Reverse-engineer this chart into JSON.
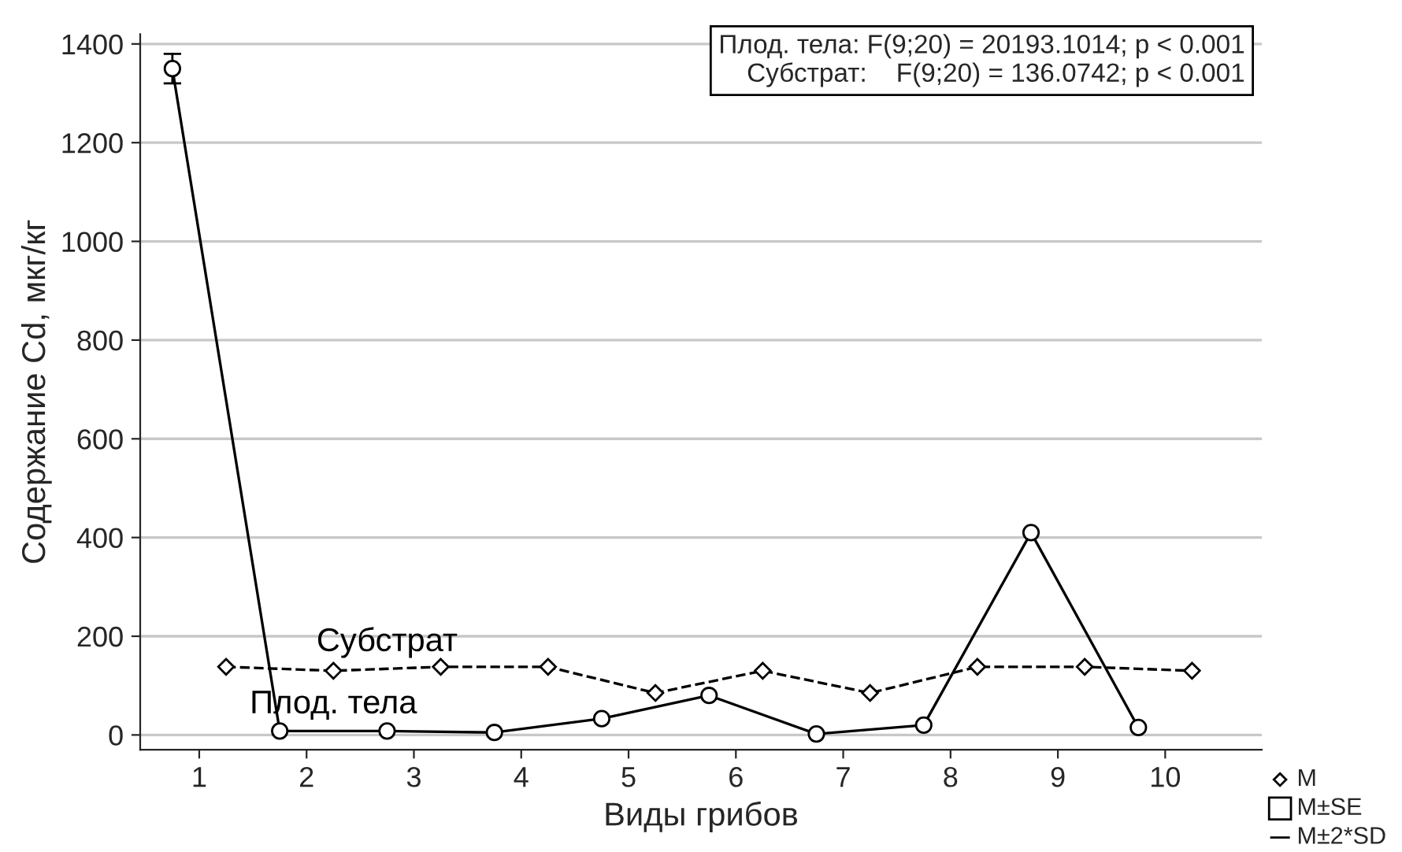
{
  "chart_data": {
    "type": "line",
    "xlabel": "Виды грибов",
    "ylabel": "Содержание Cd, мкг/кг",
    "xlim": [
      0.45,
      10.9
    ],
    "xticks": [
      1,
      2,
      3,
      4,
      5,
      6,
      7,
      8,
      9,
      10
    ],
    "series": [
      {
        "name": "Плод. тела",
        "color": "#000000",
        "marker": "circle",
        "line_style": "solid",
        "x": [
          0.75,
          1.75,
          2.75,
          3.75,
          4.75,
          5.75,
          6.75,
          7.75,
          8.75,
          9.75
        ],
        "values": [
          1350,
          8,
          8,
          5,
          33,
          80,
          2,
          20,
          410,
          15
        ],
        "errors": [
          [
            1320,
            1380
          ],
          null,
          null,
          null,
          null,
          null,
          null,
          null,
          null,
          null
        ]
      },
      {
        "name": "Субстрат",
        "color": "#000000",
        "marker": "diamond",
        "line_style": "dashed",
        "x": [
          1.25,
          2.25,
          3.25,
          4.25,
          5.25,
          6.25,
          7.25,
          8.25,
          9.25,
          10.25
        ],
        "values": [
          138,
          130,
          138,
          138,
          85,
          130,
          85,
          138,
          138,
          130
        ]
      }
    ],
    "ylim": [
      -30,
      1420
    ],
    "yticks": [
      0,
      200,
      400,
      600,
      800,
      1000,
      1200,
      1400
    ],
    "grid": "y",
    "annotations": [
      "Плод. тела: F(9;20) = 20193.1014; p < 0.001",
      "Субстрат:    F(9;20) = 136.0742; p < 0.001",
      "M",
      "M±SE",
      "M±2*SD"
    ]
  }
}
